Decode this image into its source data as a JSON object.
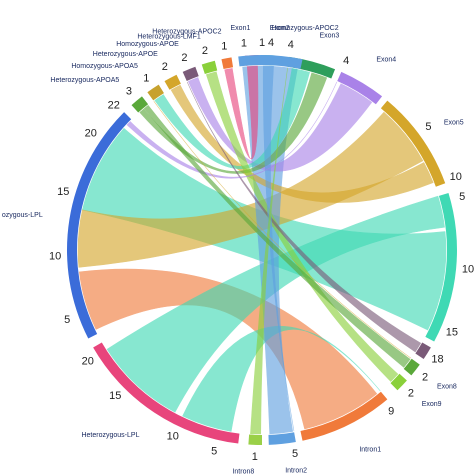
{
  "diagram": {
    "type": "chord",
    "segments": [
      {
        "id": "exon1",
        "label": "Exon1",
        "color": "#e8457c",
        "tick_labels": [
          {
            "t": 0,
            "text": "1"
          }
        ]
      },
      {
        "id": "exon2",
        "label": "Exon2",
        "color": "#3fb6c4",
        "tick_labels": [
          {
            "t": 0,
            "text": "1"
          }
        ]
      },
      {
        "id": "exon3",
        "label": "Exon3",
        "color": "#2e9e5b",
        "tick_labels": [
          {
            "t": 0,
            "text": "4"
          }
        ]
      },
      {
        "id": "exon4",
        "label": "Exon4",
        "color": "#a982e8",
        "tick_labels": [
          {
            "t": 0,
            "text": "4"
          }
        ]
      },
      {
        "id": "exon5",
        "label": "Exon5",
        "color": "#d4a62a",
        "tick_labels": [
          {
            "t": 0.45,
            "text": "5"
          },
          {
            "t": 0.98,
            "text": "10"
          }
        ]
      },
      {
        "id": "exon6",
        "label": "E",
        "color": "#3fd9b4",
        "tick_labels": [
          {
            "t": 0.05,
            "text": "5"
          },
          {
            "t": 0.5,
            "text": "10"
          },
          {
            "t": 0.9,
            "text": "15"
          }
        ]
      },
      {
        "id": "exon7",
        "label": "",
        "color": "#7a5a78",
        "tick_labels": [
          {
            "t": 0.5,
            "text": "18"
          }
        ]
      },
      {
        "id": "exon8",
        "label": "Exon8",
        "color": "#5aa83a",
        "tick_labels": [
          {
            "t": 0.5,
            "text": "2"
          }
        ]
      },
      {
        "id": "exon9",
        "label": "Exon9",
        "color": "#8ad03a",
        "tick_labels": [
          {
            "t": 0.5,
            "text": "2"
          }
        ]
      },
      {
        "id": "intron1",
        "label": "Intron1",
        "color": "#f07a3a",
        "tick_labels": [
          {
            "t": 0.05,
            "text": "9"
          }
        ]
      },
      {
        "id": "intron2",
        "label": "Intron2",
        "color": "#5fa0e0",
        "tick_labels": [
          {
            "t": 0.1,
            "text": "5"
          }
        ]
      },
      {
        "id": "intron8",
        "label": "Intron8",
        "color": "#9ad048",
        "tick_labels": [
          {
            "t": 0.5,
            "text": "1"
          }
        ]
      },
      {
        "id": "het_lpl",
        "label": "Heterozygous-LPL",
        "color": "#e8457c",
        "tick_labels": [
          {
            "t": 0.12,
            "text": "5"
          },
          {
            "t": 0.35,
            "text": "10"
          },
          {
            "t": 0.72,
            "text": "15"
          },
          {
            "t": 0.95,
            "text": "20"
          }
        ]
      },
      {
        "id": "hom_lpl",
        "label": "ozygous-LPL",
        "color": "#3b6cd9",
        "tick_labels": [
          {
            "t": 0.1,
            "text": "5"
          },
          {
            "t": 0.35,
            "text": "10"
          },
          {
            "t": 0.6,
            "text": "15"
          },
          {
            "t": 0.85,
            "text": "20"
          },
          {
            "t": 0.99,
            "text": "22"
          }
        ]
      },
      {
        "id": "het_apoa5",
        "label": "Heterozygous-APOA5",
        "color": "#5aa83a",
        "tick_labels": [
          {
            "t": 0.5,
            "text": "3"
          }
        ]
      },
      {
        "id": "hom_apoa5",
        "label": "Homozygous-APOA5",
        "color": "#c7a22e",
        "tick_labels": [
          {
            "t": 0.5,
            "text": "1"
          }
        ]
      },
      {
        "id": "het_apoe",
        "label": "Heterozygous-APOE",
        "color": "#d4a62a",
        "tick_labels": [
          {
            "t": 0.5,
            "text": "2"
          }
        ]
      },
      {
        "id": "hom_apoe",
        "label": "Homozygous-APOE",
        "color": "#7a5a78",
        "tick_labels": [
          {
            "t": 0.5,
            "text": "2"
          }
        ]
      },
      {
        "id": "het_lmf1",
        "label": "Heterozygous-LMF1",
        "color": "#8ad03a",
        "tick_labels": [
          {
            "t": 0.5,
            "text": "2"
          }
        ]
      },
      {
        "id": "het_apoc2",
        "label": "Heterozygous-APOC2",
        "color": "#f07a3a",
        "tick_labels": [
          {
            "t": 0.5,
            "text": "1"
          }
        ]
      },
      {
        "id": "hom_apoc2",
        "label": "Homozygous-APOC2",
        "color": "#5fa0e0",
        "tick_labels": [
          {
            "t": 0.5,
            "text": "4"
          }
        ]
      }
    ],
    "links": [
      {
        "from": "hom_lpl",
        "to": "exon6",
        "color": "#3fd9b4"
      },
      {
        "from": "hom_lpl",
        "to": "exon5",
        "color": "#d4a62a"
      },
      {
        "from": "hom_lpl",
        "to": "intron1",
        "color": "#f07a3a"
      },
      {
        "from": "het_lpl",
        "to": "exon6",
        "color": "#3fd9b4"
      },
      {
        "from": "het_lpl",
        "to": "intron1",
        "color": "#3fd9b4"
      },
      {
        "from": "hom_apoc2",
        "to": "intron2",
        "color": "#5fa0e0"
      },
      {
        "from": "hom_apoe",
        "to": "exon4",
        "color": "#a982e8"
      },
      {
        "from": "het_apoe",
        "to": "exon5",
        "color": "#d4a62a"
      },
      {
        "from": "hom_apoa5",
        "to": "exon3",
        "color": "#3fd9b4"
      },
      {
        "from": "het_apoa5",
        "to": "exon3",
        "color": "#5aa83a"
      },
      {
        "from": "het_lmf1",
        "to": "exon9",
        "color": "#8ad03a"
      },
      {
        "from": "hom_apoe",
        "to": "exon7",
        "color": "#7a5a78"
      },
      {
        "from": "het_apoc2",
        "to": "exon1",
        "color": "#e8457c"
      },
      {
        "from": "exon2",
        "to": "intron2",
        "color": "#5fa0e0"
      },
      {
        "from": "exon3",
        "to": "intron8",
        "color": "#8ad03a"
      },
      {
        "from": "exon4",
        "to": "hom_lpl",
        "color": "#a982e8"
      },
      {
        "from": "het_apoa5",
        "to": "exon8",
        "color": "#5aa83a"
      },
      {
        "from": "hom_apoa5",
        "to": "exon8",
        "color": "#d4a62a"
      }
    ]
  }
}
